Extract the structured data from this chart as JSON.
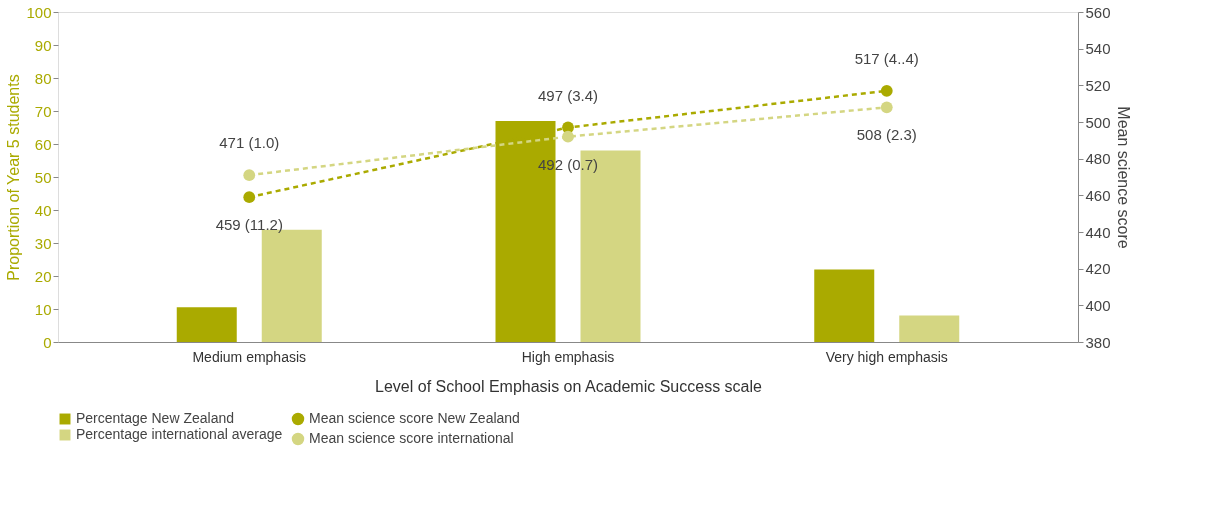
{
  "chart_data": {
    "type": "bar",
    "categories": [
      "Medium emphasis",
      "High emphasis",
      "Very high emphasis"
    ],
    "xlabel": "Level of School Emphasis on Academic Success scale",
    "ylabel": "Proportion of Year 5 students",
    "y2label": "Mean science score",
    "ylim": [
      0,
      100
    ],
    "yticks": [
      0,
      10,
      20,
      30,
      40,
      50,
      60,
      70,
      80,
      90,
      100
    ],
    "y2lim": [
      380,
      560
    ],
    "y2ticks": [
      380,
      400,
      420,
      440,
      460,
      480,
      500,
      520,
      540,
      560
    ],
    "grid": false,
    "legend": "bottom",
    "marker": "circle",
    "line_style": "dashed",
    "series": [
      {
        "name": "Percentage New Zealand",
        "color": "#aaaa00",
        "values": [
          10.5,
          67,
          22
        ]
      },
      {
        "name": "Percentage international average",
        "color": "#d4d682",
        "values": [
          34,
          58,
          8
        ]
      },
      {
        "name": "Mean science score New Zealand",
        "type": "line",
        "axis": "y2",
        "color": "#aaaa00",
        "values": [
          459,
          497,
          517
        ],
        "value_labels": [
          "459 (11.2)",
          "497 (3.4)",
          "517 (4..4)"
        ]
      },
      {
        "name": "Mean science score international",
        "type": "line",
        "axis": "y2",
        "color": "#d4d682",
        "values": [
          471,
          492,
          508
        ],
        "value_labels": [
          "471 (1.0)",
          "492 (0.7)",
          "508 (2.3)"
        ]
      }
    ]
  }
}
